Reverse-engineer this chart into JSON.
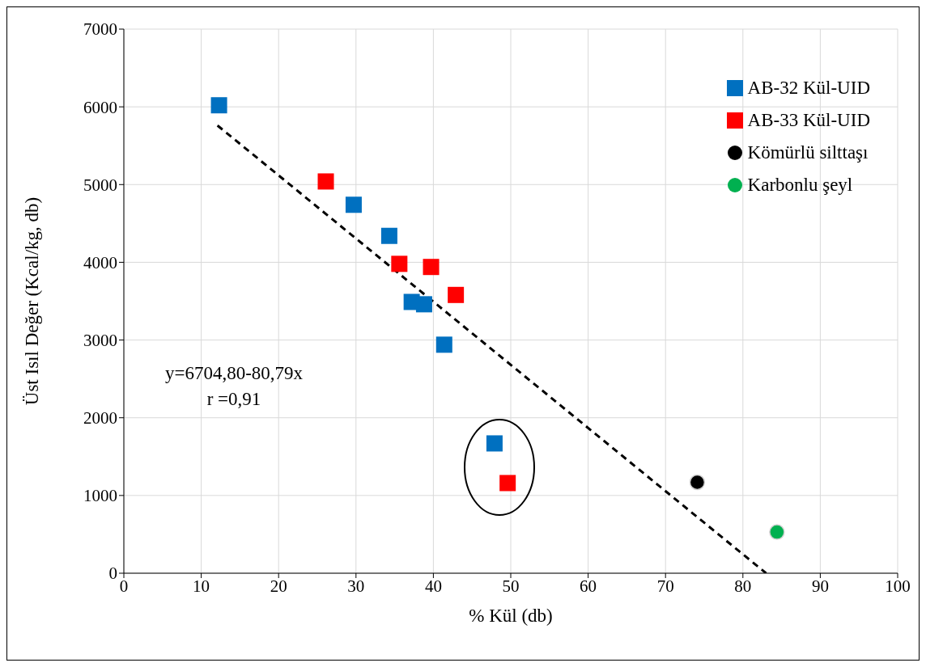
{
  "chart_data": {
    "type": "scatter",
    "xlabel": "% Kül (db)",
    "ylabel": "Üst Isıl Değer (Kcal/kg, db)",
    "xlim": [
      0,
      100
    ],
    "xticks": [
      0,
      10,
      20,
      30,
      40,
      50,
      60,
      70,
      80,
      90,
      100
    ],
    "ylim": [
      0,
      7000
    ],
    "yticks": [
      0,
      1000,
      2000,
      3000,
      4000,
      5000,
      6000,
      7000
    ],
    "grid": true,
    "legend": "top right",
    "series": [
      {
        "name": "AB-32 Kül-UID",
        "color": "#0070c0",
        "marker": "square",
        "x": [
          12.3,
          29.7,
          34.3,
          37.2,
          38.8,
          41.4,
          47.9
        ],
        "values": [
          6020,
          4740,
          4340,
          3490,
          3460,
          2940,
          1670
        ]
      },
      {
        "name": "AB-33 Kül-UID",
        "color": "#ff0000",
        "marker": "square",
        "x": [
          26.1,
          35.6,
          39.7,
          42.9,
          49.6
        ],
        "values": [
          5040,
          3980,
          3940,
          3580,
          1160
        ]
      },
      {
        "name": "Kömürlü silttaşı",
        "color": "#000000",
        "marker": "circle",
        "x": [
          74.1
        ],
        "values": [
          1170
        ]
      },
      {
        "name": "Karbonlu şeyl",
        "color": "#00b050",
        "marker": "circle",
        "x": [
          84.4
        ],
        "values": [
          530
        ]
      },
      {
        "type": "line",
        "color": "#000000",
        "line_style": "dashed",
        "x": [
          12.1,
          83.0
        ],
        "values": [
          5760,
          0
        ]
      }
    ],
    "annotations": [
      "y=6704,80-80,79x",
      "r =0,91"
    ]
  }
}
